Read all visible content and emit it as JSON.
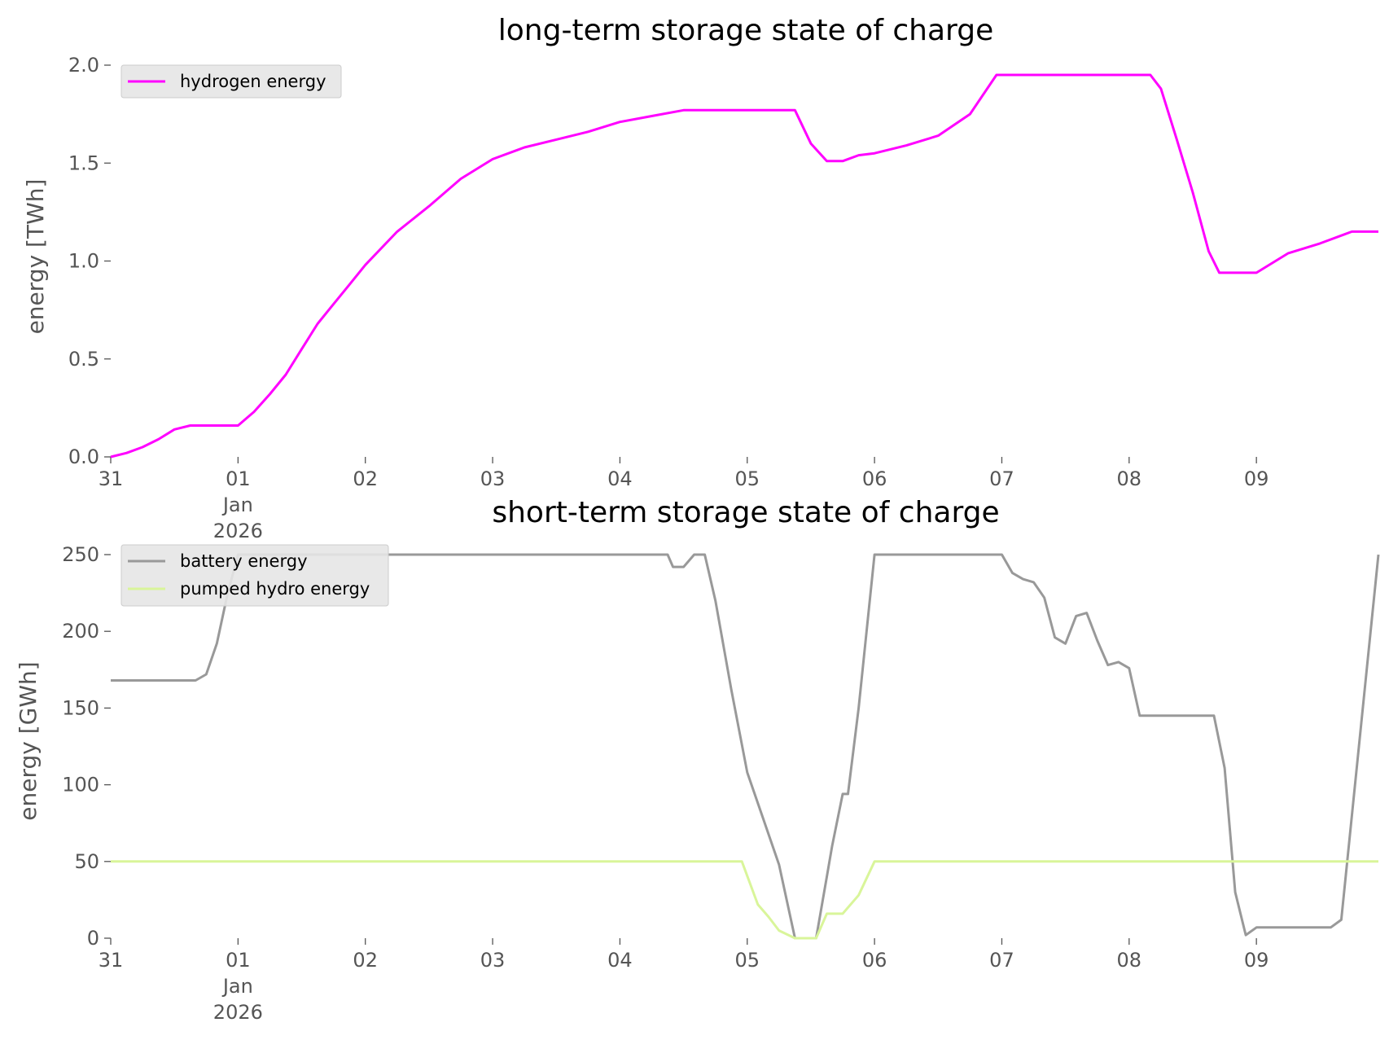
{
  "chart_data": [
    {
      "type": "line",
      "title": "long-term storage state of charge",
      "xlabel": "",
      "ylabel": "energy [TWh]",
      "x_tick_labels": [
        "31",
        "01\nJan\n2026",
        "02",
        "03",
        "04",
        "05",
        "06",
        "07",
        "08",
        "09"
      ],
      "y_tick_labels": [
        "0.0",
        "0.5",
        "1.0",
        "1.5",
        "2.0"
      ],
      "xlim": [
        "2025-12-31T00:00",
        "2026-01-09T23:00"
      ],
      "ylim": [
        0,
        2.0
      ],
      "grid": false,
      "legend_position": "upper-left",
      "series": [
        {
          "name": "hydrogen energy",
          "color": "#ff00ff",
          "x": [
            "2025-12-31T00:00",
            "2025-12-31T03:00",
            "2025-12-31T06:00",
            "2025-12-31T09:00",
            "2025-12-31T12:00",
            "2025-12-31T15:00",
            "2025-12-31T16:00",
            "2025-12-31T18:00",
            "2025-12-31T21:00",
            "2026-01-01T00:00",
            "2026-01-01T03:00",
            "2026-01-01T06:00",
            "2026-01-01T09:00",
            "2026-01-01T12:00",
            "2026-01-01T15:00",
            "2026-01-01T18:00",
            "2026-01-01T21:00",
            "2026-01-02T00:00",
            "2026-01-02T06:00",
            "2026-01-02T12:00",
            "2026-01-02T18:00",
            "2026-01-03T00:00",
            "2026-01-03T06:00",
            "2026-01-03T12:00",
            "2026-01-03T18:00",
            "2026-01-04T00:00",
            "2026-01-04T06:00",
            "2026-01-04T12:00",
            "2026-01-04T18:00",
            "2026-01-05T00:00",
            "2026-01-05T06:00",
            "2026-01-05T09:00",
            "2026-01-05T12:00",
            "2026-01-05T15:00",
            "2026-01-05T18:00",
            "2026-01-05T21:00",
            "2026-01-06T00:00",
            "2026-01-06T06:00",
            "2026-01-06T12:00",
            "2026-01-06T18:00",
            "2026-01-06T23:00",
            "2026-01-07T06:00",
            "2026-01-07T12:00",
            "2026-01-07T18:00",
            "2026-01-08T00:00",
            "2026-01-08T04:00",
            "2026-01-08T06:00",
            "2026-01-08T09:00",
            "2026-01-08T12:00",
            "2026-01-08T15:00",
            "2026-01-08T17:00",
            "2026-01-08T19:00",
            "2026-01-09T00:00",
            "2026-01-09T06:00",
            "2026-01-09T12:00",
            "2026-01-09T18:00",
            "2026-01-09T23:00"
          ],
          "y": [
            0.0,
            0.02,
            0.05,
            0.09,
            0.14,
            0.16,
            0.16,
            0.16,
            0.16,
            0.16,
            0.23,
            0.32,
            0.42,
            0.55,
            0.68,
            0.78,
            0.88,
            0.98,
            1.15,
            1.28,
            1.42,
            1.52,
            1.58,
            1.62,
            1.66,
            1.71,
            1.74,
            1.77,
            1.77,
            1.77,
            1.77,
            1.77,
            1.6,
            1.51,
            1.51,
            1.54,
            1.55,
            1.59,
            1.64,
            1.75,
            1.95,
            1.95,
            1.95,
            1.95,
            1.95,
            1.95,
            1.88,
            1.62,
            1.35,
            1.05,
            0.94,
            0.94,
            0.94,
            1.04,
            1.09,
            1.15,
            1.15
          ]
        }
      ]
    },
    {
      "type": "line",
      "title": "short-term storage state of charge",
      "xlabel": "",
      "ylabel": "energy [GWh]",
      "x_tick_labels": [
        "31",
        "01\nJan\n2026",
        "02",
        "03",
        "04",
        "05",
        "06",
        "07",
        "08",
        "09"
      ],
      "y_tick_labels": [
        "0",
        "50",
        "100",
        "150",
        "200",
        "250"
      ],
      "xlim": [
        "2025-12-31T00:00",
        "2026-01-09T23:00"
      ],
      "ylim": [
        0,
        250
      ],
      "grid": false,
      "legend_position": "upper-left",
      "series": [
        {
          "name": "battery energy",
          "color": "#999999",
          "x": [
            "2025-12-31T00:00",
            "2025-12-31T12:00",
            "2025-12-31T16:00",
            "2025-12-31T18:00",
            "2025-12-31T20:00",
            "2025-12-31T22:00",
            "2026-01-01T00:00",
            "2026-01-01T02:00",
            "2026-01-01T04:00",
            "2026-01-01T06:00",
            "2026-01-02T00:00",
            "2026-01-03T00:00",
            "2026-01-04T00:00",
            "2026-01-04T06:00",
            "2026-01-04T09:00",
            "2026-01-04T10:00",
            "2026-01-04T12:00",
            "2026-01-04T14:00",
            "2026-01-04T16:00",
            "2026-01-04T18:00",
            "2026-01-04T21:00",
            "2026-01-05T00:00",
            "2026-01-05T03:00",
            "2026-01-05T06:00",
            "2026-01-05T09:00",
            "2026-01-05T11:00",
            "2026-01-05T13:00",
            "2026-01-05T15:00",
            "2026-01-05T16:00",
            "2026-01-05T18:00",
            "2026-01-05T19:00",
            "2026-01-05T21:00",
            "2026-01-06T00:00",
            "2026-01-06T12:00",
            "2026-01-06T20:00",
            "2026-01-07T00:00",
            "2026-01-07T02:00",
            "2026-01-07T04:00",
            "2026-01-07T06:00",
            "2026-01-07T08:00",
            "2026-01-07T10:00",
            "2026-01-07T12:00",
            "2026-01-07T14:00",
            "2026-01-07T16:00",
            "2026-01-07T18:00",
            "2026-01-07T20:00",
            "2026-01-07T22:00",
            "2026-01-08T00:00",
            "2026-01-08T02:00",
            "2026-01-08T04:00",
            "2026-01-08T12:00",
            "2026-01-08T16:00",
            "2026-01-08T18:00",
            "2026-01-08T20:00",
            "2026-01-08T22:00",
            "2026-01-09T00:00",
            "2026-01-09T06:00",
            "2026-01-09T14:00",
            "2026-01-09T16:00",
            "2026-01-09T23:00"
          ],
          "y": [
            168,
            168,
            168,
            172,
            192,
            224,
            250,
            250,
            250,
            250,
            250,
            250,
            250,
            250,
            250,
            242,
            242,
            250,
            250,
            220,
            162,
            108,
            78,
            48,
            0,
            0,
            0,
            40,
            60,
            94,
            94,
            150,
            250,
            250,
            250,
            250,
            238,
            234,
            232,
            222,
            196,
            192,
            210,
            212,
            194,
            178,
            180,
            176,
            145,
            145,
            145,
            145,
            111,
            30,
            2,
            7,
            7,
            7,
            12,
            250
          ]
        },
        {
          "name": "pumped hydro energy",
          "color": "#d9f59a",
          "x": [
            "2025-12-31T00:00",
            "2026-01-04T23:00",
            "2026-01-05T02:00",
            "2026-01-05T04:00",
            "2026-01-05T06:00",
            "2026-01-05T09:00",
            "2026-01-05T13:00",
            "2026-01-05T15:00",
            "2026-01-05T18:00",
            "2026-01-05T21:00",
            "2026-01-06T00:00",
            "2026-01-09T23:00"
          ],
          "y": [
            50,
            50,
            22,
            14,
            5,
            0,
            0,
            16,
            16,
            28,
            50,
            50
          ]
        }
      ]
    }
  ]
}
